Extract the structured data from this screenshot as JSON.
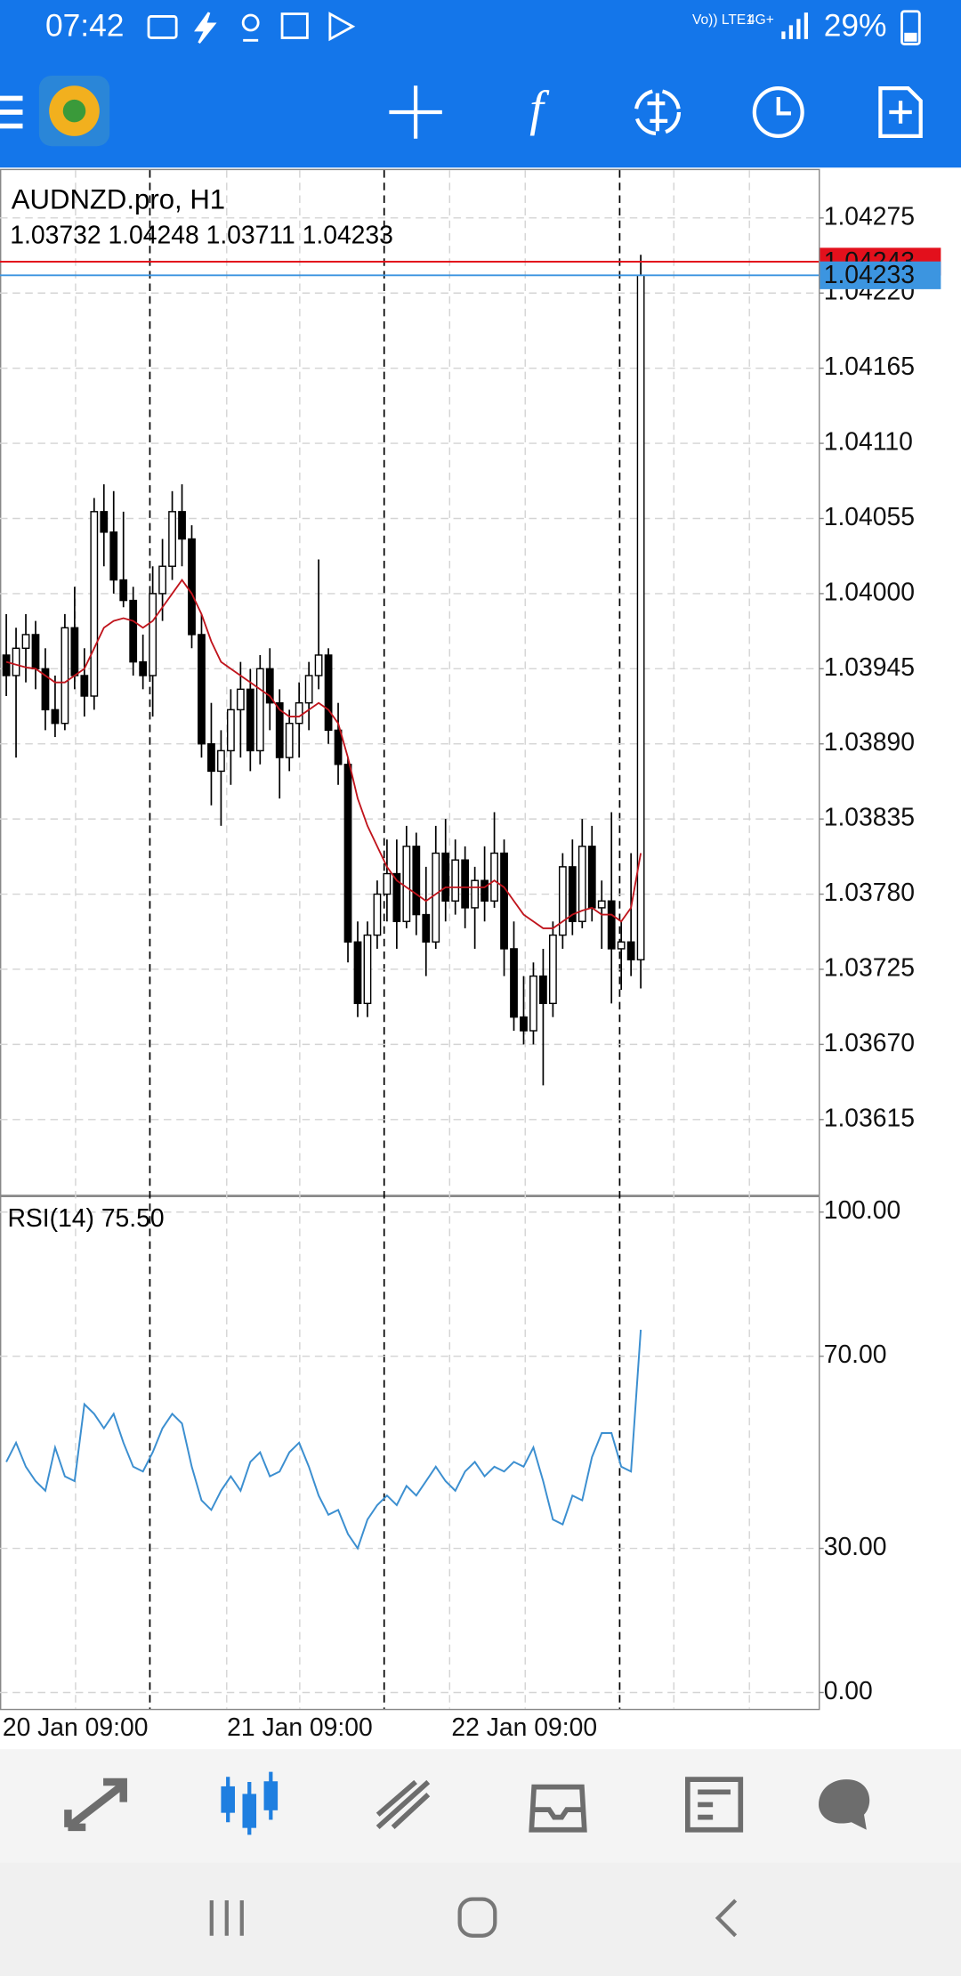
{
  "status_bar": {
    "time": "07:42",
    "carrier": "Vo)) LTE1",
    "network": "4G+",
    "battery": "29%"
  },
  "chart_data": [
    {
      "type": "candlestick",
      "title": "AUDNZD.pro, H1",
      "subtitle": "1.03732 1.04248 1.03711 1.04233",
      "categories": [
        "20 Jan 09:00",
        null,
        null,
        null,
        null,
        null,
        null,
        null,
        null,
        null,
        null,
        null,
        null,
        null,
        null,
        null,
        null,
        null,
        null,
        null,
        null,
        null,
        null,
        "21 Jan 09:00",
        null,
        null,
        null,
        null,
        null,
        null,
        null,
        null,
        null,
        null,
        null,
        null,
        null,
        null,
        null,
        null,
        null,
        null,
        null,
        null,
        null,
        null,
        "22 Jan 09:00",
        null,
        null,
        null,
        null,
        null,
        null,
        null,
        null,
        null,
        null,
        null,
        null,
        null,
        null,
        null,
        null,
        null,
        null,
        null
      ],
      "open": [
        1.03955,
        1.0394,
        1.0396,
        1.0397,
        1.03945,
        1.03915,
        1.03905,
        1.03975,
        1.0394,
        1.03925,
        1.0406,
        1.04045,
        1.0401,
        1.03995,
        1.0395,
        1.0394,
        1.04,
        1.0402,
        1.0406,
        1.0404,
        1.0397,
        1.0389,
        1.0387,
        1.03885,
        1.03915,
        1.0393,
        1.03885,
        1.03945,
        1.0392,
        1.0388,
        1.03905,
        1.0392,
        1.0394,
        1.03955,
        1.039,
        1.03875,
        1.03745,
        1.037,
        1.0375,
        1.0378,
        1.03795,
        1.0376,
        1.03815,
        1.03765,
        1.03745,
        1.0381,
        1.03775,
        1.03805,
        1.0377,
        1.0379,
        1.03775,
        1.0381,
        1.0374,
        1.0369,
        1.0368,
        1.0372,
        1.037,
        1.0375,
        1.038,
        1.0376,
        1.03815,
        1.0377,
        1.03775,
        1.0374,
        1.03745,
        1.03732
      ],
      "high": [
        1.03985,
        1.03975,
        1.03985,
        1.0398,
        1.0396,
        1.0394,
        1.03985,
        1.04005,
        1.0396,
        1.0407,
        1.0408,
        1.04075,
        1.0406,
        1.04005,
        1.0397,
        1.0402,
        1.0404,
        1.04075,
        1.0408,
        1.0405,
        1.03985,
        1.0392,
        1.039,
        1.0393,
        1.0395,
        1.03945,
        1.03955,
        1.0396,
        1.0393,
        1.03915,
        1.03935,
        1.0395,
        1.04025,
        1.0396,
        1.0392,
        1.0388,
        1.0376,
        1.0376,
        1.0379,
        1.0382,
        1.0382,
        1.0383,
        1.03825,
        1.038,
        1.0383,
        1.03835,
        1.0382,
        1.03815,
        1.038,
        1.03815,
        1.0384,
        1.0382,
        1.0376,
        1.0372,
        1.0373,
        1.0374,
        1.0376,
        1.0381,
        1.0382,
        1.03835,
        1.0383,
        1.0379,
        1.0384,
        1.0376,
        1.0381,
        1.04248
      ],
      "low": [
        1.03925,
        1.0388,
        1.03935,
        1.0393,
        1.039,
        1.03895,
        1.039,
        1.0393,
        1.0391,
        1.03915,
        1.0402,
        1.04,
        1.0399,
        1.0394,
        1.0393,
        1.0391,
        1.0398,
        1.0401,
        1.0402,
        1.0396,
        1.0388,
        1.03845,
        1.0383,
        1.0386,
        1.0388,
        1.0387,
        1.03875,
        1.039,
        1.0385,
        1.0387,
        1.0388,
        1.039,
        1.0393,
        1.0389,
        1.0386,
        1.0373,
        1.0369,
        1.0369,
        1.0374,
        1.0376,
        1.0374,
        1.03755,
        1.0375,
        1.0372,
        1.0374,
        1.0376,
        1.03765,
        1.03755,
        1.0374,
        1.0376,
        1.0377,
        1.0372,
        1.0368,
        1.0367,
        1.0367,
        1.0364,
        1.0369,
        1.0374,
        1.0375,
        1.03755,
        1.0376,
        1.0374,
        1.037,
        1.0371,
        1.0372,
        1.03711
      ],
      "close": [
        1.0394,
        1.0396,
        1.0397,
        1.03945,
        1.03915,
        1.03905,
        1.03975,
        1.0394,
        1.03925,
        1.0406,
        1.04045,
        1.0401,
        1.03995,
        1.0395,
        1.0394,
        1.04,
        1.0402,
        1.0406,
        1.0404,
        1.0397,
        1.0389,
        1.0387,
        1.03885,
        1.03915,
        1.0393,
        1.03885,
        1.03945,
        1.0392,
        1.0388,
        1.03905,
        1.0392,
        1.0394,
        1.03955,
        1.039,
        1.03875,
        1.03745,
        1.037,
        1.0375,
        1.0378,
        1.03795,
        1.0376,
        1.03815,
        1.03765,
        1.03745,
        1.0381,
        1.03775,
        1.03805,
        1.0377,
        1.0379,
        1.03775,
        1.0381,
        1.0374,
        1.0369,
        1.0368,
        1.0372,
        1.037,
        1.0375,
        1.038,
        1.0376,
        1.03815,
        1.0377,
        1.03775,
        1.0374,
        1.03745,
        1.03732,
        1.04233
      ],
      "up_color": "#ffffff",
      "down_color": "#000000",
      "moving_average": {
        "color": "#c0141c",
        "values": [
          1.0395,
          1.03948,
          1.03946,
          1.03945,
          1.0394,
          1.03935,
          1.03935,
          1.0394,
          1.03945,
          1.0396,
          1.03975,
          1.0398,
          1.03982,
          1.0398,
          1.03975,
          1.0398,
          1.0399,
          1.04,
          1.0401,
          1.04,
          1.03985,
          1.03965,
          1.0395,
          1.03945,
          1.0394,
          1.03935,
          1.0393,
          1.03925,
          1.03915,
          1.0391,
          1.0391,
          1.03915,
          1.0392,
          1.03915,
          1.03905,
          1.0388,
          1.0385,
          1.0383,
          1.03815,
          1.038,
          1.0379,
          1.03785,
          1.0378,
          1.03775,
          1.0378,
          1.03785,
          1.03785,
          1.03785,
          1.03785,
          1.03785,
          1.0379,
          1.03785,
          1.03775,
          1.03765,
          1.0376,
          1.03755,
          1.03755,
          1.0376,
          1.03765,
          1.03768,
          1.0377,
          1.03765,
          1.03765,
          1.0376,
          1.0377,
          1.0381
        ]
      },
      "ask": 1.04243,
      "ask_color": "#e3101c",
      "bid": 1.04233,
      "bid_color": "#3c95e0",
      "ylim": [
        1.0356,
        1.0431
      ],
      "yticks": [
        1.04275,
        {
          "value": 1.0422,
          "label": "1.04220"
        },
        1.04165,
        {
          "value": 1.0411,
          "label": "1.04110"
        },
        1.04055,
        {
          "value": 1.04,
          "label": "1.04000"
        },
        1.03945,
        {
          "value": 1.0389,
          "label": "1.03890"
        },
        1.03835,
        {
          "value": 1.0378,
          "label": "1.03780"
        },
        1.03725,
        {
          "value": 1.0367,
          "label": "1.03670"
        },
        1.03615
      ],
      "grid": true
    },
    {
      "type": "line",
      "title": "RSI(14) 75.50",
      "series": [
        {
          "color": "#3c8fd0",
          "values": [
            48,
            52,
            47,
            44,
            42,
            51,
            45,
            44,
            60,
            58,
            55,
            58,
            52,
            47,
            46,
            50,
            55,
            58,
            56,
            47,
            40,
            38,
            42,
            45,
            42,
            48,
            50,
            45,
            46,
            50,
            52,
            47,
            41,
            37,
            38,
            33,
            30,
            36,
            39,
            41,
            39,
            43,
            41,
            44,
            47,
            44,
            42,
            46,
            48,
            45,
            47,
            46,
            48,
            47,
            51,
            44,
            36,
            35,
            41,
            40,
            49,
            54,
            54,
            47,
            46,
            75.5
          ]
        }
      ],
      "ylim": [
        -3.4,
        103.1
      ],
      "yticks": [
        {
          "value": 0,
          "label": "0.00"
        },
        {
          "value": 30,
          "label": "30.00"
        },
        {
          "value": 70,
          "label": "70.00"
        },
        {
          "value": 100,
          "label": "100.00"
        }
      ],
      "grid": true
    }
  ]
}
